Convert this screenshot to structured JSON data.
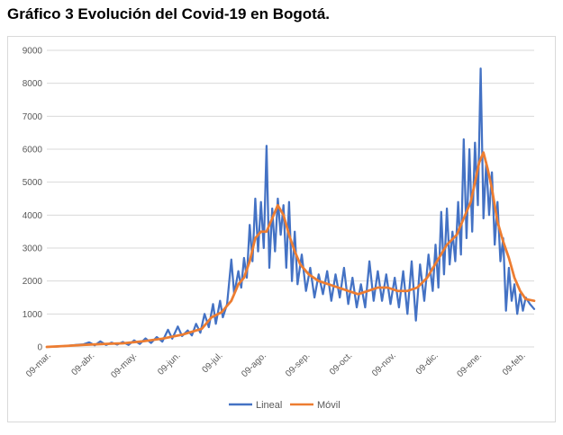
{
  "title": "Gráfico 3 Evolución del Covid-19 en Bogotá.",
  "chart_data": {
    "type": "line",
    "title": "",
    "xlabel": "",
    "ylabel": "",
    "ylim": [
      0,
      9000
    ],
    "yticks": [
      0,
      1000,
      2000,
      3000,
      4000,
      5000,
      6000,
      7000,
      8000,
      9000
    ],
    "x_start": "2020-03-06",
    "x_end": "2021-02-15",
    "xticks": [
      {
        "date": "2020-03-09",
        "label": "09-mar."
      },
      {
        "date": "2020-04-09",
        "label": "09-abr."
      },
      {
        "date": "2020-05-09",
        "label": "09-may."
      },
      {
        "date": "2020-06-09",
        "label": "09-jun."
      },
      {
        "date": "2020-07-09",
        "label": "09-jul."
      },
      {
        "date": "2020-08-09",
        "label": "09-ago."
      },
      {
        "date": "2020-09-09",
        "label": "09-sep."
      },
      {
        "date": "2020-10-09",
        "label": "09-oct."
      },
      {
        "date": "2020-11-09",
        "label": "09-nov."
      },
      {
        "date": "2020-12-09",
        "label": "09-dic."
      },
      {
        "date": "2021-01-09",
        "label": "09-ene."
      },
      {
        "date": "2021-02-09",
        "label": "09-feb."
      }
    ],
    "grid": true,
    "legend_position": "bottom",
    "series": [
      {
        "name": "Lineal",
        "color": "#4472c4",
        "points": [
          [
            "2020-03-06",
            0
          ],
          [
            "2020-03-13",
            10
          ],
          [
            "2020-03-20",
            30
          ],
          [
            "2020-03-27",
            60
          ],
          [
            "2020-04-01",
            80
          ],
          [
            "2020-04-05",
            140
          ],
          [
            "2020-04-09",
            50
          ],
          [
            "2020-04-13",
            170
          ],
          [
            "2020-04-17",
            60
          ],
          [
            "2020-04-21",
            130
          ],
          [
            "2020-04-25",
            70
          ],
          [
            "2020-04-29",
            150
          ],
          [
            "2020-05-03",
            60
          ],
          [
            "2020-05-07",
            200
          ],
          [
            "2020-05-11",
            90
          ],
          [
            "2020-05-15",
            260
          ],
          [
            "2020-05-19",
            120
          ],
          [
            "2020-05-23",
            300
          ],
          [
            "2020-05-27",
            160
          ],
          [
            "2020-05-31",
            520
          ],
          [
            "2020-06-03",
            250
          ],
          [
            "2020-06-07",
            620
          ],
          [
            "2020-06-10",
            330
          ],
          [
            "2020-06-14",
            500
          ],
          [
            "2020-06-17",
            350
          ],
          [
            "2020-06-20",
            700
          ],
          [
            "2020-06-23",
            430
          ],
          [
            "2020-06-26",
            1000
          ],
          [
            "2020-06-29",
            600
          ],
          [
            "2020-07-02",
            1300
          ],
          [
            "2020-07-04",
            700
          ],
          [
            "2020-07-07",
            1400
          ],
          [
            "2020-07-09",
            900
          ],
          [
            "2020-07-12",
            1300
          ],
          [
            "2020-07-15",
            2650
          ],
          [
            "2020-07-17",
            1600
          ],
          [
            "2020-07-20",
            2300
          ],
          [
            "2020-07-22",
            1800
          ],
          [
            "2020-07-24",
            2700
          ],
          [
            "2020-07-26",
            2100
          ],
          [
            "2020-07-28",
            3700
          ],
          [
            "2020-07-30",
            2600
          ],
          [
            "2020-08-01",
            4500
          ],
          [
            "2020-08-03",
            2900
          ],
          [
            "2020-08-05",
            4400
          ],
          [
            "2020-08-07",
            3000
          ],
          [
            "2020-08-09",
            6100
          ],
          [
            "2020-08-11",
            2400
          ],
          [
            "2020-08-13",
            4200
          ],
          [
            "2020-08-15",
            2900
          ],
          [
            "2020-08-17",
            4500
          ],
          [
            "2020-08-19",
            3400
          ],
          [
            "2020-08-21",
            4300
          ],
          [
            "2020-08-23",
            2400
          ],
          [
            "2020-08-25",
            4400
          ],
          [
            "2020-08-27",
            2000
          ],
          [
            "2020-08-29",
            3500
          ],
          [
            "2020-08-31",
            1900
          ],
          [
            "2020-09-03",
            2800
          ],
          [
            "2020-09-06",
            1700
          ],
          [
            "2020-09-09",
            2400
          ],
          [
            "2020-09-12",
            1500
          ],
          [
            "2020-09-15",
            2200
          ],
          [
            "2020-09-18",
            1600
          ],
          [
            "2020-09-21",
            2300
          ],
          [
            "2020-09-24",
            1400
          ],
          [
            "2020-09-27",
            2200
          ],
          [
            "2020-09-30",
            1500
          ],
          [
            "2020-10-03",
            2400
          ],
          [
            "2020-10-06",
            1300
          ],
          [
            "2020-10-09",
            2100
          ],
          [
            "2020-10-12",
            1200
          ],
          [
            "2020-10-15",
            1900
          ],
          [
            "2020-10-18",
            1200
          ],
          [
            "2020-10-21",
            2600
          ],
          [
            "2020-10-24",
            1400
          ],
          [
            "2020-10-27",
            2300
          ],
          [
            "2020-10-30",
            1400
          ],
          [
            "2020-11-02",
            2200
          ],
          [
            "2020-11-05",
            1300
          ],
          [
            "2020-11-08",
            2100
          ],
          [
            "2020-11-11",
            1200
          ],
          [
            "2020-11-14",
            2300
          ],
          [
            "2020-11-17",
            1000
          ],
          [
            "2020-11-20",
            2600
          ],
          [
            "2020-11-23",
            800
          ],
          [
            "2020-11-26",
            2500
          ],
          [
            "2020-11-29",
            1400
          ],
          [
            "2020-12-02",
            2800
          ],
          [
            "2020-12-05",
            1700
          ],
          [
            "2020-12-07",
            3100
          ],
          [
            "2020-12-09",
            1800
          ],
          [
            "2020-12-11",
            4100
          ],
          [
            "2020-12-13",
            2200
          ],
          [
            "2020-12-15",
            4200
          ],
          [
            "2020-12-17",
            2500
          ],
          [
            "2020-12-19",
            3500
          ],
          [
            "2020-12-21",
            2600
          ],
          [
            "2020-12-23",
            4400
          ],
          [
            "2020-12-25",
            2800
          ],
          [
            "2020-12-27",
            6300
          ],
          [
            "2020-12-29",
            3300
          ],
          [
            "2020-12-31",
            6000
          ],
          [
            "2021-01-02",
            3500
          ],
          [
            "2021-01-04",
            6200
          ],
          [
            "2021-01-06",
            4300
          ],
          [
            "2021-01-08",
            8450
          ],
          [
            "2021-01-10",
            3900
          ],
          [
            "2021-01-12",
            5600
          ],
          [
            "2021-01-14",
            4000
          ],
          [
            "2021-01-16",
            5300
          ],
          [
            "2021-01-18",
            3100
          ],
          [
            "2021-01-20",
            4400
          ],
          [
            "2021-01-22",
            2600
          ],
          [
            "2021-01-24",
            3300
          ],
          [
            "2021-01-26",
            1100
          ],
          [
            "2021-01-28",
            2400
          ],
          [
            "2021-01-30",
            1400
          ],
          [
            "2021-02-01",
            1900
          ],
          [
            "2021-02-03",
            1000
          ],
          [
            "2021-02-05",
            1600
          ],
          [
            "2021-02-07",
            1100
          ],
          [
            "2021-02-09",
            1500
          ],
          [
            "2021-02-12",
            1300
          ],
          [
            "2021-02-15",
            1150
          ]
        ]
      },
      {
        "name": "Móvil",
        "color": "#ed7d31",
        "points": [
          [
            "2020-03-06",
            0
          ],
          [
            "2020-03-20",
            30
          ],
          [
            "2020-04-01",
            60
          ],
          [
            "2020-04-15",
            90
          ],
          [
            "2020-04-29",
            110
          ],
          [
            "2020-05-13",
            170
          ],
          [
            "2020-05-27",
            250
          ],
          [
            "2020-06-10",
            370
          ],
          [
            "2020-06-24",
            550
          ],
          [
            "2020-07-01",
            900
          ],
          [
            "2020-07-08",
            1050
          ],
          [
            "2020-07-15",
            1400
          ],
          [
            "2020-07-20",
            1900
          ],
          [
            "2020-07-24",
            2100
          ],
          [
            "2020-07-28",
            2600
          ],
          [
            "2020-08-01",
            3300
          ],
          [
            "2020-08-05",
            3500
          ],
          [
            "2020-08-09",
            3500
          ],
          [
            "2020-08-13",
            3900
          ],
          [
            "2020-08-17",
            4300
          ],
          [
            "2020-08-21",
            4000
          ],
          [
            "2020-08-25",
            3400
          ],
          [
            "2020-08-29",
            2900
          ],
          [
            "2020-09-02",
            2500
          ],
          [
            "2020-09-08",
            2200
          ],
          [
            "2020-09-15",
            2000
          ],
          [
            "2020-09-22",
            1900
          ],
          [
            "2020-09-29",
            1800
          ],
          [
            "2020-10-06",
            1700
          ],
          [
            "2020-10-13",
            1600
          ],
          [
            "2020-10-20",
            1700
          ],
          [
            "2020-10-27",
            1800
          ],
          [
            "2020-11-03",
            1800
          ],
          [
            "2020-11-10",
            1700
          ],
          [
            "2020-11-17",
            1700
          ],
          [
            "2020-11-24",
            1800
          ],
          [
            "2020-12-01",
            2100
          ],
          [
            "2020-12-08",
            2600
          ],
          [
            "2020-12-15",
            3100
          ],
          [
            "2020-12-22",
            3400
          ],
          [
            "2020-12-27",
            3900
          ],
          [
            "2021-01-01",
            4400
          ],
          [
            "2021-01-04",
            5000
          ],
          [
            "2021-01-07",
            5600
          ],
          [
            "2021-01-10",
            5900
          ],
          [
            "2021-01-13",
            5400
          ],
          [
            "2021-01-16",
            4800
          ],
          [
            "2021-01-20",
            3800
          ],
          [
            "2021-01-24",
            3200
          ],
          [
            "2021-01-28",
            2700
          ],
          [
            "2021-02-01",
            2100
          ],
          [
            "2021-02-05",
            1700
          ],
          [
            "2021-02-09",
            1450
          ],
          [
            "2021-02-15",
            1400
          ]
        ]
      }
    ]
  }
}
